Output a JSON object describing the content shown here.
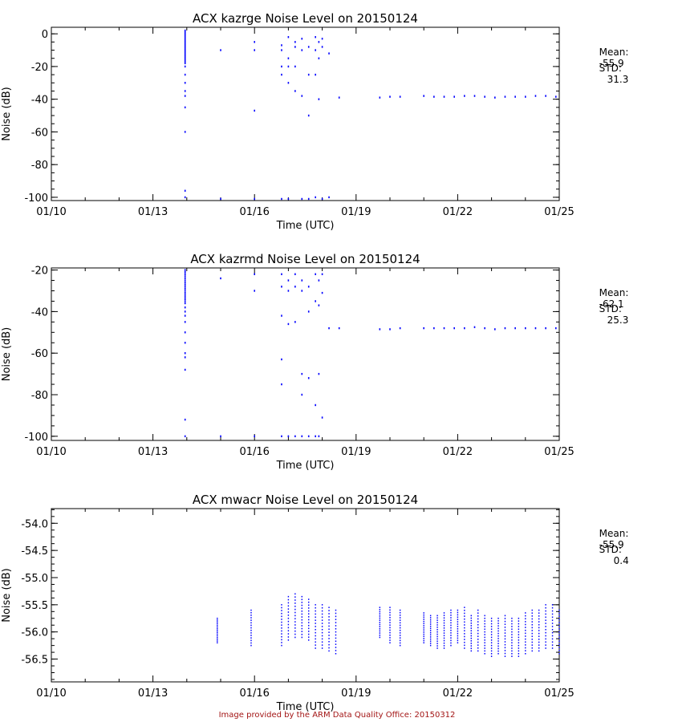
{
  "footer": "Image provided by the ARM Data Quality Office: 20150312",
  "colors": {
    "points": "#0000ff",
    "axes": "#000000",
    "footer": "#a31515"
  },
  "chart_data": [
    {
      "type": "scatter",
      "title": "ACX kazrge Noise Level on 20150124",
      "xlabel": "Time (UTC)",
      "ylabel": "Noise (dB)",
      "xlim": [
        "01/10",
        "01/25"
      ],
      "xticks": [
        "01/10",
        "01/13",
        "01/16",
        "01/19",
        "01/22",
        "01/25"
      ],
      "ylim": [
        -102,
        4
      ],
      "yticks": [
        0,
        -20,
        -40,
        -60,
        -80,
        -100
      ],
      "stats": {
        "mean_label": "Mean:",
        "mean": "-55.9",
        "std_label": "STD:",
        "std": "31.3"
      },
      "series": [
        {
          "x": [
            "01/13.95",
            "01/13.95",
            "01/13.95",
            "01/13.95",
            "01/13.95",
            "01/13.95",
            "01/13.95",
            "01/13.95",
            "01/13.95",
            "01/13.95",
            "01/13.95",
            "01/13.95",
            "01/13.95",
            "01/13.95",
            "01/13.95",
            "01/13.95",
            "01/13.95",
            "01/13.95",
            "01/13.95",
            "01/13.95",
            "01/13.95",
            "01/13.95",
            "01/13.95",
            "01/13.95",
            "01/13.95",
            "01/13.95",
            "01/13.95",
            "01/13.95",
            "01/13.95",
            "01/13.95"
          ],
          "y": [
            2,
            1,
            0,
            -1,
            -2,
            -3,
            -4,
            -5,
            -6,
            -7,
            -8,
            -9,
            -10,
            -11,
            -12,
            -13,
            -14,
            -15,
            -16,
            -17,
            -18,
            -20,
            -25,
            -30,
            -35,
            -38,
            -45,
            -60,
            -96,
            -100
          ]
        },
        {
          "x": [
            "01/15.0",
            "01/15.0",
            "01/16.0",
            "01/16.0",
            "01/16.0",
            "01/16.0",
            "01/16.8",
            "01/16.8",
            "01/16.8",
            "01/16.8",
            "01/16.8",
            "01/17.0",
            "01/17.0",
            "01/17.0",
            "01/17.0",
            "01/17.0",
            "01/17.2",
            "01/17.2",
            "01/17.2",
            "01/17.2",
            "01/17.4",
            "01/17.4",
            "01/17.4",
            "01/17.4",
            "01/17.6",
            "01/17.6",
            "01/17.6",
            "01/17.6",
            "01/17.8",
            "01/17.8",
            "01/17.8",
            "01/17.8",
            "01/17.9",
            "01/17.9",
            "01/17.9",
            "01/18.0",
            "01/18.0",
            "01/18.0",
            "01/18.2",
            "01/18.2",
            "01/18.5"
          ],
          "y": [
            -10,
            -101,
            -5,
            -10,
            -47,
            -101,
            -7,
            -10,
            -20,
            -25,
            -101,
            -2,
            -15,
            -20,
            -30,
            -101,
            -5,
            -8,
            -20,
            -35,
            -3,
            -10,
            -38,
            -101,
            -8,
            -25,
            -50,
            -101,
            -2,
            -10,
            -25,
            -100,
            -5,
            -15,
            -40,
            -3,
            -8,
            -101,
            -12,
            -100,
            -39
          ]
        },
        {
          "x": [
            "01/19.7",
            "01/20.0",
            "01/20.3",
            "01/21.0",
            "01/21.3",
            "01/21.6",
            "01/21.9",
            "01/22.2",
            "01/22.5",
            "01/22.8",
            "01/23.1",
            "01/23.4",
            "01/23.7",
            "01/24.0",
            "01/24.3",
            "01/24.6",
            "01/24.9"
          ],
          "y": [
            -39,
            -38.5,
            -38.5,
            -38,
            -38.5,
            -38.5,
            -38.5,
            -38,
            -38,
            -38.5,
            -39,
            -38.5,
            -38.5,
            -38.5,
            -38,
            -38,
            -38.5
          ]
        }
      ]
    },
    {
      "type": "scatter",
      "title": "ACX kazrmd Noise Level on 20150124",
      "xlabel": "Time (UTC)",
      "ylabel": "Noise (dB)",
      "xlim": [
        "01/10",
        "01/25"
      ],
      "xticks": [
        "01/10",
        "01/13",
        "01/16",
        "01/19",
        "01/22",
        "01/25"
      ],
      "ylim": [
        -102,
        -19
      ],
      "yticks": [
        -20,
        -40,
        -60,
        -80,
        -100
      ],
      "stats": {
        "mean_label": "Mean:",
        "mean": "-62.1",
        "std_label": "STD:",
        "std": "25.3"
      },
      "series": [
        {
          "x": [
            "01/13.95",
            "01/13.95",
            "01/13.95",
            "01/13.95",
            "01/13.95",
            "01/13.95",
            "01/13.95",
            "01/13.95",
            "01/13.95",
            "01/13.95",
            "01/13.95",
            "01/13.95",
            "01/13.95",
            "01/13.95",
            "01/13.95",
            "01/13.95",
            "01/13.95",
            "01/13.95",
            "01/13.95",
            "01/13.95",
            "01/13.95",
            "01/13.95",
            "01/13.95",
            "01/13.95",
            "01/13.95",
            "01/13.95",
            "01/13.95",
            "01/13.95"
          ],
          "y": [
            -20,
            -21,
            -22,
            -23,
            -24,
            -25,
            -26,
            -27,
            -28,
            -29,
            -30,
            -31,
            -32,
            -33,
            -34,
            -35,
            -36,
            -38,
            -40,
            -42,
            -45,
            -50,
            -55,
            -60,
            -62,
            -68,
            -92,
            -100
          ]
        },
        {
          "x": [
            "01/15.0",
            "01/15.0",
            "01/16.0",
            "01/16.0",
            "01/16.0",
            "01/16.8",
            "01/16.8",
            "01/16.8",
            "01/16.8",
            "01/16.8",
            "01/16.8",
            "01/17.0",
            "01/17.0",
            "01/17.0",
            "01/17.0",
            "01/17.2",
            "01/17.2",
            "01/17.2",
            "01/17.2",
            "01/17.4",
            "01/17.4",
            "01/17.4",
            "01/17.4",
            "01/17.4",
            "01/17.6",
            "01/17.6",
            "01/17.6",
            "01/17.6",
            "01/17.8",
            "01/17.8",
            "01/17.8",
            "01/17.8",
            "01/17.9",
            "01/17.9",
            "01/17.9",
            "01/17.9",
            "01/18.0",
            "01/18.0",
            "01/18.0",
            "01/18.2",
            "01/18.5"
          ],
          "y": [
            -24,
            -100,
            -22,
            -30,
            -100,
            -22,
            -28,
            -42,
            -63,
            -75,
            -100,
            -25,
            -30,
            -46,
            -100,
            -22,
            -28,
            -45,
            -100,
            -25,
            -30,
            -70,
            -80,
            -100,
            -28,
            -40,
            -72,
            -100,
            -22,
            -35,
            -85,
            -100,
            -25,
            -37,
            -70,
            -100,
            -22,
            -31,
            -91,
            -48,
            -48
          ]
        },
        {
          "x": [
            "01/19.7",
            "01/20.0",
            "01/20.3",
            "01/21.0",
            "01/21.3",
            "01/21.6",
            "01/21.9",
            "01/22.2",
            "01/22.5",
            "01/22.8",
            "01/23.1",
            "01/23.4",
            "01/23.7",
            "01/24.0",
            "01/24.3",
            "01/24.6",
            "01/24.9"
          ],
          "y": [
            -48.5,
            -48.5,
            -48,
            -48,
            -48,
            -48,
            -48,
            -48,
            -47.5,
            -48,
            -48.5,
            -48,
            -48,
            -48,
            -48,
            -48,
            -48
          ]
        }
      ]
    },
    {
      "type": "scatter",
      "title": "ACX mwacr Noise Level on 20150124",
      "xlabel": "Time (UTC)",
      "ylabel": "Noise (dB)",
      "xlim": [
        "01/10",
        "01/25"
      ],
      "xticks": [
        "01/10",
        "01/13",
        "01/16",
        "01/19",
        "01/22",
        "01/25"
      ],
      "ylim": [
        -56.92,
        -53.73
      ],
      "yticks": [
        "-54.0",
        "-54.5",
        "-55.0",
        "-55.5",
        "-56.0",
        "-56.5"
      ],
      "stats": {
        "mean_label": "Mean:",
        "mean": "-55.9",
        "std_label": "STD:",
        "std": "0.4"
      },
      "series": [
        {
          "x": [
            "01/14.9",
            "01/15.9",
            "01/16.8",
            "01/17.0",
            "01/17.2",
            "01/17.4",
            "01/17.6",
            "01/17.8",
            "01/18.0",
            "01/18.2",
            "01/18.4",
            "01/19.7",
            "01/20.0",
            "01/20.3",
            "01/21.0",
            "01/21.2",
            "01/21.4",
            "01/21.6",
            "01/21.8",
            "01/22.0",
            "01/22.2",
            "01/22.4",
            "01/22.6",
            "01/22.8",
            "01/23.0",
            "01/23.2",
            "01/23.4",
            "01/23.6",
            "01/23.8",
            "01/24.0",
            "01/24.2",
            "01/24.4",
            "01/24.6",
            "01/24.8",
            "01/25.0"
          ],
          "ymin": [
            -56.2,
            -56.25,
            -56.25,
            -56.15,
            -56.1,
            -56.1,
            -56.15,
            -56.3,
            -56.3,
            -56.35,
            -56.4,
            -56.1,
            -56.2,
            -56.25,
            -56.2,
            -56.25,
            -56.3,
            -56.3,
            -56.25,
            -56.2,
            -56.3,
            -56.35,
            -56.35,
            -56.4,
            -56.45,
            -56.4,
            -56.45,
            -56.45,
            -56.45,
            -56.4,
            -56.35,
            -56.35,
            -56.3,
            -56.3,
            -56.4
          ],
          "ymax": [
            -55.75,
            -55.6,
            -55.5,
            -55.35,
            -55.3,
            -55.35,
            -55.4,
            -55.5,
            -55.5,
            -55.55,
            -55.6,
            -55.55,
            -55.55,
            -55.6,
            -55.65,
            -55.7,
            -55.7,
            -55.65,
            -55.6,
            -55.6,
            -55.55,
            -55.7,
            -55.6,
            -55.7,
            -55.75,
            -55.75,
            -55.7,
            -55.75,
            -55.75,
            -55.65,
            -55.6,
            -55.6,
            -55.5,
            -55.5,
            -55.6
          ]
        }
      ]
    }
  ]
}
